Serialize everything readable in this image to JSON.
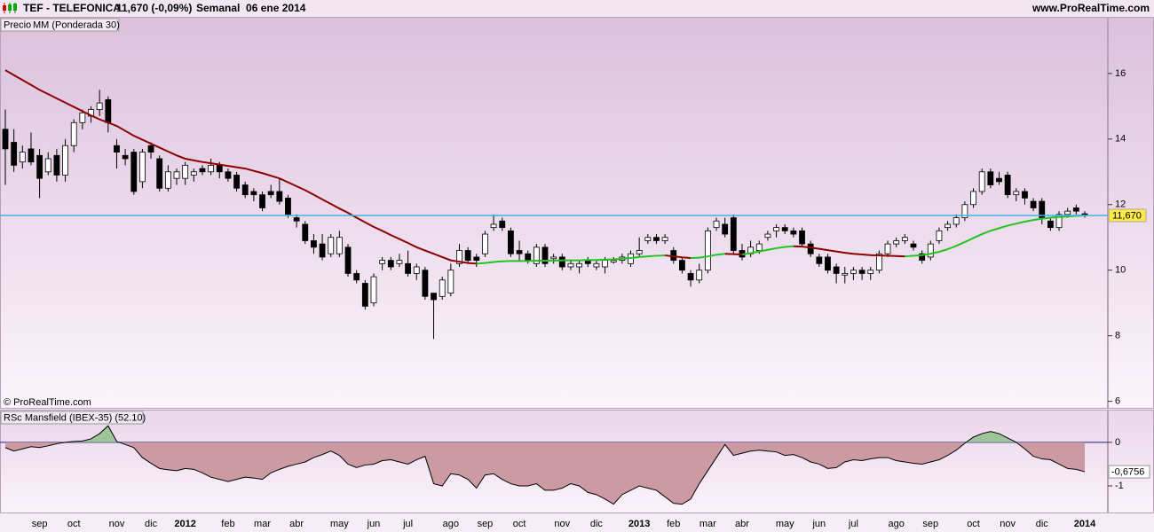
{
  "header": {
    "symbol": "TEF - TELEFONICA",
    "quote": "11,670 (-0,09%)",
    "period": "Semanal  06 ene 2014",
    "site": "www.ProRealTime.com"
  },
  "chart_data": [
    {
      "type": "candlestick",
      "legend_label": "Precio",
      "open": [
        14.3,
        13.9,
        13.3,
        13.7,
        13.5,
        13.0,
        13.5,
        12.9,
        13.8,
        14.5,
        14.7,
        14.9,
        15.2,
        13.8,
        13.5,
        13.6,
        12.7,
        13.8,
        13.4,
        12.5,
        12.8,
        12.8,
        12.9,
        13.1,
        13.0,
        13.2,
        13.0,
        12.9,
        12.6,
        12.4,
        12.3,
        12.4,
        12.4,
        12.2,
        11.6,
        11.4,
        10.9,
        10.8,
        10.5,
        10.5,
        10.7,
        9.9,
        9.6,
        9.0,
        10.2,
        10.3,
        10.2,
        10.2,
        9.9,
        10.0,
        9.3,
        9.2,
        9.3,
        10.2,
        10.6,
        10.4,
        10.5,
        11.3,
        11.5,
        11.2,
        10.6,
        10.5,
        10.2,
        10.7,
        10.35,
        10.4,
        10.1,
        10.1,
        10.3,
        10.1,
        10.1,
        10.25,
        10.3,
        10.2,
        10.5,
        10.9,
        11.0,
        10.9,
        10.6,
        10.3,
        9.9,
        9.7,
        10.0,
        11.3,
        11.4,
        11.6,
        10.6,
        10.5,
        10.6,
        11.0,
        11.2,
        11.3,
        11.2,
        11.2,
        10.8,
        10.4,
        10.4,
        10.1,
        9.85,
        9.9,
        10.0,
        9.9,
        10.0,
        10.5,
        10.8,
        10.9,
        10.8,
        10.5,
        10.4,
        10.9,
        11.3,
        11.4,
        11.6,
        12.0,
        12.4,
        13.0,
        12.8,
        12.9,
        12.3,
        12.4,
        12.1,
        12.1,
        11.5,
        11.3,
        11.7,
        11.9,
        11.72
      ],
      "high": [
        14.9,
        14.3,
        13.8,
        14.2,
        13.7,
        13.6,
        13.7,
        14.0,
        14.6,
        14.9,
        15.0,
        15.5,
        15.3,
        14.0,
        13.7,
        13.7,
        13.7,
        13.9,
        13.5,
        13.2,
        13.1,
        13.3,
        13.1,
        13.2,
        13.4,
        13.3,
        13.1,
        13.0,
        12.7,
        12.5,
        12.4,
        12.6,
        12.8,
        12.3,
        11.7,
        11.5,
        11.1,
        11.1,
        11.1,
        11.2,
        10.8,
        10.0,
        9.7,
        9.9,
        10.4,
        10.4,
        10.5,
        10.6,
        10.2,
        10.1,
        9.3,
        9.8,
        10.2,
        10.8,
        10.7,
        10.5,
        11.2,
        11.7,
        11.6,
        11.3,
        10.9,
        10.6,
        10.8,
        10.8,
        10.5,
        10.5,
        10.3,
        10.3,
        10.4,
        10.3,
        10.4,
        10.4,
        10.5,
        10.6,
        11.0,
        11.1,
        11.1,
        11.1,
        10.7,
        10.4,
        10.0,
        10.2,
        11.3,
        11.6,
        11.6,
        11.7,
        10.8,
        10.9,
        10.9,
        11.2,
        11.4,
        11.4,
        11.3,
        11.3,
        10.9,
        10.5,
        10.5,
        10.2,
        10.1,
        10.1,
        10.1,
        10.1,
        10.6,
        10.9,
        11.0,
        11.1,
        10.9,
        10.6,
        10.9,
        11.3,
        11.5,
        11.7,
        12.1,
        12.5,
        13.1,
        13.1,
        13.0,
        13.0,
        12.5,
        12.5,
        12.2,
        12.2,
        11.6,
        11.8,
        11.9,
        12.0,
        11.8
      ],
      "low": [
        12.6,
        13.0,
        13.1,
        13.2,
        12.2,
        12.9,
        12.7,
        12.7,
        13.6,
        14.3,
        14.5,
        14.7,
        14.2,
        13.1,
        13.2,
        12.3,
        12.5,
        13.4,
        12.4,
        12.4,
        12.6,
        12.6,
        12.7,
        12.9,
        12.9,
        12.8,
        12.7,
        12.4,
        12.2,
        12.1,
        11.8,
        12.2,
        12.0,
        11.6,
        11.3,
        10.8,
        10.5,
        10.3,
        10.4,
        10.4,
        9.8,
        9.6,
        8.8,
        8.9,
        10.0,
        10.0,
        10.1,
        9.8,
        9.7,
        9.1,
        7.9,
        9.1,
        9.2,
        10.1,
        10.2,
        10.1,
        10.4,
        11.2,
        11.2,
        10.4,
        10.3,
        10.2,
        10.1,
        10.1,
        10.2,
        10.0,
        10.0,
        9.9,
        10.1,
        10.0,
        9.9,
        10.2,
        10.2,
        10.1,
        10.4,
        10.8,
        10.8,
        10.8,
        10.2,
        9.9,
        9.5,
        9.6,
        9.9,
        11.2,
        11.0,
        10.5,
        10.3,
        10.4,
        10.5,
        10.9,
        11.0,
        11.1,
        11.0,
        10.7,
        10.4,
        10.1,
        9.9,
        9.6,
        9.6,
        9.7,
        9.7,
        9.7,
        9.9,
        10.4,
        10.7,
        10.8,
        10.6,
        10.2,
        10.3,
        10.8,
        11.2,
        11.3,
        11.5,
        11.9,
        12.3,
        12.5,
        12.6,
        12.2,
        12.1,
        12.0,
        11.8,
        11.4,
        11.2,
        11.2,
        11.6,
        11.7,
        11.6
      ],
      "close": [
        13.7,
        13.2,
        13.6,
        13.3,
        12.8,
        13.4,
        12.9,
        13.8,
        14.5,
        14.8,
        14.9,
        15.1,
        14.5,
        13.6,
        13.4,
        12.4,
        13.6,
        13.6,
        12.5,
        13.0,
        13.0,
        13.2,
        13.0,
        13.0,
        13.2,
        13.0,
        12.8,
        12.5,
        12.3,
        12.3,
        11.9,
        12.3,
        12.1,
        11.7,
        11.5,
        10.9,
        10.7,
        10.4,
        11.0,
        11.0,
        9.9,
        9.7,
        8.9,
        9.8,
        10.3,
        10.1,
        10.3,
        9.9,
        10.1,
        9.2,
        9.1,
        9.7,
        10.0,
        10.6,
        10.3,
        10.3,
        11.1,
        11.4,
        11.3,
        10.5,
        10.5,
        10.3,
        10.7,
        10.2,
        10.4,
        10.1,
        10.2,
        10.2,
        10.2,
        10.2,
        10.3,
        10.3,
        10.4,
        10.5,
        10.6,
        11.0,
        10.9,
        11.0,
        10.3,
        10.0,
        9.7,
        10.0,
        11.2,
        11.5,
        11.1,
        10.6,
        10.4,
        10.7,
        10.8,
        11.1,
        11.3,
        11.2,
        11.1,
        10.8,
        10.5,
        10.2,
        10.0,
        9.9,
        9.9,
        10.0,
        9.9,
        10.0,
        10.5,
        10.8,
        10.9,
        11.0,
        10.7,
        10.3,
        10.8,
        11.2,
        11.4,
        11.6,
        12.0,
        12.4,
        13.0,
        12.6,
        12.7,
        12.3,
        12.4,
        12.2,
        11.9,
        11.6,
        11.3,
        11.7,
        11.8,
        11.8,
        11.67
      ],
      "up_color": "#ffffff",
      "down_color": "#000000",
      "series": [
        {
          "name": "MM (Ponderada 30)",
          "color": "#22c422",
          "falling_color": "#8b0000",
          "values": [
            16.1,
            15.95,
            15.8,
            15.65,
            15.5,
            15.37,
            15.24,
            15.11,
            14.98,
            14.85,
            14.72,
            14.6,
            14.5,
            14.4,
            14.25,
            14.1,
            13.98,
            13.86,
            13.74,
            13.62,
            13.5,
            13.4,
            13.35,
            13.3,
            13.26,
            13.22,
            13.18,
            13.14,
            13.1,
            13.03,
            12.96,
            12.88,
            12.8,
            12.68,
            12.56,
            12.44,
            12.3,
            12.16,
            12.02,
            11.88,
            11.75,
            11.6,
            11.46,
            11.32,
            11.2,
            11.07,
            10.95,
            10.83,
            10.7,
            10.6,
            10.5,
            10.4,
            10.3,
            10.26,
            10.22,
            10.2,
            10.22,
            10.25,
            10.27,
            10.28,
            10.28,
            10.28,
            10.29,
            10.29,
            10.29,
            10.3,
            10.3,
            10.3,
            10.31,
            10.31,
            10.32,
            10.33,
            10.35,
            10.37,
            10.4,
            10.42,
            10.44,
            10.45,
            10.42,
            10.39,
            10.37,
            10.38,
            10.42,
            10.47,
            10.5,
            10.49,
            10.48,
            10.52,
            10.57,
            10.62,
            10.67,
            10.71,
            10.73,
            10.72,
            10.69,
            10.65,
            10.61,
            10.57,
            10.53,
            10.5,
            10.48,
            10.46,
            10.45,
            10.44,
            10.43,
            10.42,
            10.44,
            10.46,
            10.5,
            10.56,
            10.64,
            10.74,
            10.86,
            10.98,
            11.1,
            11.2,
            11.28,
            11.36,
            11.42,
            11.48,
            11.53,
            11.57,
            11.6,
            11.62,
            11.64,
            11.66,
            11.67
          ]
        }
      ],
      "reference_line": {
        "value": 11.67,
        "label": "11,670",
        "color": "#3cb4e6"
      },
      "ylim": [
        5.8,
        17.7
      ],
      "yticks": [
        6,
        8,
        10,
        12,
        14,
        16
      ],
      "watermark": "© ProRealTime.com"
    },
    {
      "type": "area",
      "title": "RSc Mansfield (IBEX-35) (52.10)",
      "categories": [
        null,
        null,
        null,
        null,
        "sep",
        null,
        null,
        null,
        "oct",
        null,
        null,
        null,
        null,
        "nov",
        null,
        null,
        null,
        "dic",
        null,
        null,
        null,
        "2012",
        null,
        null,
        null,
        null,
        "feb",
        null,
        null,
        null,
        "mar",
        null,
        null,
        null,
        "abr",
        null,
        null,
        null,
        null,
        "may",
        null,
        null,
        null,
        "jun",
        null,
        null,
        null,
        "jul",
        null,
        null,
        null,
        null,
        "ago",
        null,
        null,
        null,
        "sep",
        null,
        null,
        null,
        "oct",
        null,
        null,
        null,
        null,
        "nov",
        null,
        null,
        null,
        "dic",
        null,
        null,
        null,
        null,
        "2013",
        null,
        null,
        null,
        "feb",
        null,
        null,
        null,
        "mar",
        null,
        null,
        null,
        "abr",
        null,
        null,
        null,
        null,
        "may",
        null,
        null,
        null,
        "jun",
        null,
        null,
        null,
        "jul",
        null,
        null,
        null,
        null,
        "ago",
        null,
        null,
        null,
        "sep",
        null,
        null,
        null,
        null,
        "oct",
        null,
        null,
        null,
        "nov",
        null,
        null,
        null,
        "dic",
        null,
        null,
        null,
        null,
        "2014"
      ],
      "values": [
        -0.12,
        -0.2,
        -0.15,
        -0.1,
        -0.12,
        -0.08,
        -0.03,
        0,
        0.02,
        0.03,
        0.08,
        0.2,
        0.38,
        0.02,
        -0.05,
        -0.12,
        -0.35,
        -0.48,
        -0.6,
        -0.63,
        -0.65,
        -0.6,
        -0.62,
        -0.7,
        -0.8,
        -0.85,
        -0.9,
        -0.85,
        -0.8,
        -0.82,
        -0.85,
        -0.7,
        -0.62,
        -0.55,
        -0.5,
        -0.45,
        -0.35,
        -0.28,
        -0.2,
        -0.3,
        -0.5,
        -0.58,
        -0.52,
        -0.5,
        -0.42,
        -0.4,
        -0.45,
        -0.5,
        -0.4,
        -0.32,
        -0.95,
        -1.0,
        -0.72,
        -0.75,
        -0.85,
        -1.05,
        -0.75,
        -0.72,
        -0.85,
        -0.95,
        -1.0,
        -1.0,
        -0.95,
        -1.1,
        -1.1,
        -1.05,
        -0.95,
        -1.0,
        -1.15,
        -1.2,
        -1.3,
        -1.42,
        -1.2,
        -1.1,
        -1.0,
        -1.05,
        -1.1,
        -1.25,
        -1.4,
        -1.42,
        -1.3,
        -0.95,
        -0.65,
        -0.35,
        -0.05,
        -0.3,
        -0.25,
        -0.2,
        -0.18,
        -0.2,
        -0.22,
        -0.3,
        -0.28,
        -0.35,
        -0.45,
        -0.5,
        -0.6,
        -0.58,
        -0.45,
        -0.4,
        -0.42,
        -0.38,
        -0.35,
        -0.35,
        -0.42,
        -0.45,
        -0.48,
        -0.5,
        -0.45,
        -0.4,
        -0.3,
        -0.18,
        -0.02,
        0.12,
        0.2,
        0.25,
        0.2,
        0.1,
        0,
        -0.15,
        -0.32,
        -0.38,
        -0.4,
        -0.5,
        -0.6,
        -0.62,
        -0.6756
      ],
      "last_value_label": "-0,6756",
      "positive_color": "#9fc49a",
      "negative_color": "#cc9aa2",
      "line_color": "#000000",
      "zero_line_color": "#1a1a8c",
      "ylim": [
        -1.61,
        0.73
      ],
      "yticks": [
        0,
        -1
      ]
    }
  ]
}
